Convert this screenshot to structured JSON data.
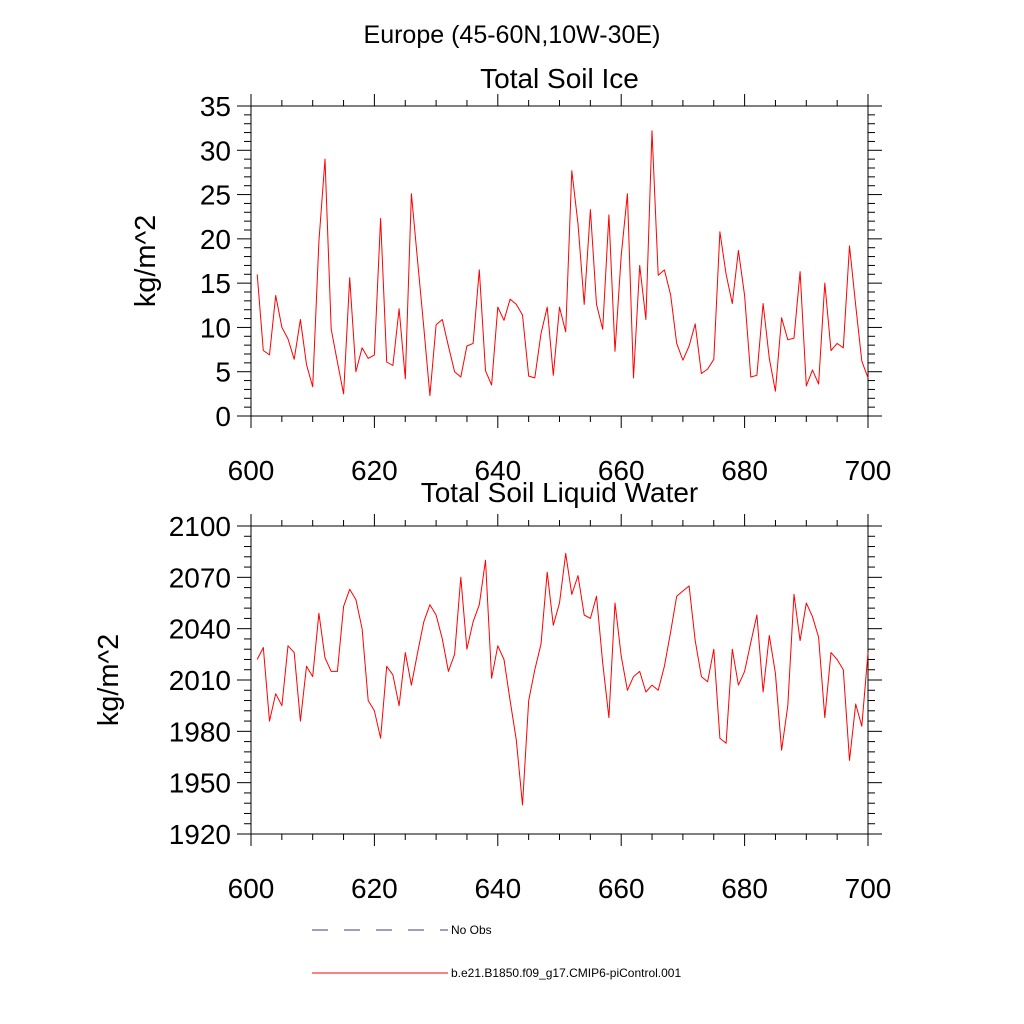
{
  "suptitle": "Europe (45-60N,10W-30E)",
  "colors": {
    "series": "#ff0000",
    "obs": "#3d3d8f",
    "axis": "#000000"
  },
  "legend": [
    {
      "label": "No Obs",
      "style": "dashed",
      "color": "#3d3d8f"
    },
    {
      "label": "b.e21.B1850.f09_g17.CMIP6-piControl.001",
      "style": "solid",
      "color": "#ff0000"
    }
  ],
  "chart_data": [
    {
      "type": "line",
      "title": "Total Soil Ice",
      "xlabel": "",
      "ylabel": "kg/m^2",
      "xlim": [
        600,
        700
      ],
      "ylim": [
        0,
        35
      ],
      "xticks": [
        600,
        620,
        640,
        660,
        680,
        700
      ],
      "yticks": [
        0,
        5,
        10,
        15,
        20,
        25,
        30,
        35
      ],
      "x_start": 601,
      "series": [
        {
          "name": "b.e21.B1850.f09_g17.CMIP6-piControl.001",
          "values": [
            16.0,
            7.4,
            6.9,
            13.6,
            10.0,
            8.7,
            6.4,
            10.9,
            5.8,
            3.3,
            19.7,
            29.0,
            9.8,
            6.1,
            2.5,
            15.6,
            5.0,
            7.7,
            6.5,
            6.9,
            22.3,
            6.1,
            5.7,
            12.1,
            4.2,
            25.1,
            17.5,
            10.0,
            2.3,
            10.3,
            10.9,
            7.9,
            5.0,
            4.4,
            7.9,
            8.2,
            16.5,
            5.1,
            3.5,
            12.3,
            10.8,
            13.2,
            12.6,
            11.4,
            4.5,
            4.3,
            9.3,
            12.3,
            4.6,
            12.3,
            9.5,
            27.7,
            21.7,
            12.6,
            23.3,
            12.6,
            9.8,
            22.7,
            7.3,
            18.1,
            25.1,
            4.3,
            17.0,
            10.9,
            32.2,
            15.9,
            16.5,
            13.7,
            8.2,
            6.3,
            7.9,
            10.4,
            4.8,
            5.3,
            6.4,
            20.8,
            16.0,
            12.7,
            18.7,
            13.6,
            4.4,
            4.6,
            12.7,
            6.5,
            2.8,
            11.1,
            8.6,
            8.8,
            16.3,
            3.4,
            5.2,
            3.6,
            15.0,
            7.4,
            8.2,
            7.7,
            19.2,
            12.5,
            6.2,
            4.3
          ]
        }
      ]
    },
    {
      "type": "line",
      "title": "Total Soil Liquid Water",
      "xlabel": "",
      "ylabel": "kg/m^2",
      "xlim": [
        600,
        700
      ],
      "ylim": [
        1920,
        2100
      ],
      "xticks": [
        600,
        620,
        640,
        660,
        680,
        700
      ],
      "yticks": [
        1920,
        1950,
        1980,
        2010,
        2040,
        2070,
        2100
      ],
      "x_start": 601,
      "series": [
        {
          "name": "b.e21.B1850.f09_g17.CMIP6-piControl.001",
          "values": [
            2022,
            2029,
            1986,
            2002,
            1995,
            2030,
            2026,
            1986,
            2018,
            2012,
            2049,
            2023,
            2015,
            2015,
            2053,
            2063,
            2057,
            2040,
            1998,
            1992,
            1976,
            2018,
            2013,
            1995,
            2026,
            2007,
            2026,
            2044,
            2054,
            2048,
            2034,
            2015,
            2025,
            2070,
            2028,
            2044,
            2054,
            2080,
            2011,
            2030,
            2022,
            1998,
            1975,
            1937,
            1998,
            2016,
            2031,
            2073,
            2042,
            2055,
            2084,
            2060,
            2071,
            2048,
            2046,
            2059,
            2020,
            1988,
            2055,
            2024,
            2004,
            2012,
            2015,
            2003,
            2007,
            2004,
            2018,
            2038,
            2059,
            2062,
            2065,
            2033,
            2012,
            2009,
            2028,
            1976,
            1973,
            2028,
            2007,
            2015,
            2032,
            2048,
            2003,
            2036,
            2014,
            1969,
            1995,
            2060,
            2033,
            2055,
            2047,
            2035,
            1988,
            2026,
            2022,
            2016,
            1963,
            1996,
            1983,
            2026
          ]
        }
      ]
    }
  ]
}
